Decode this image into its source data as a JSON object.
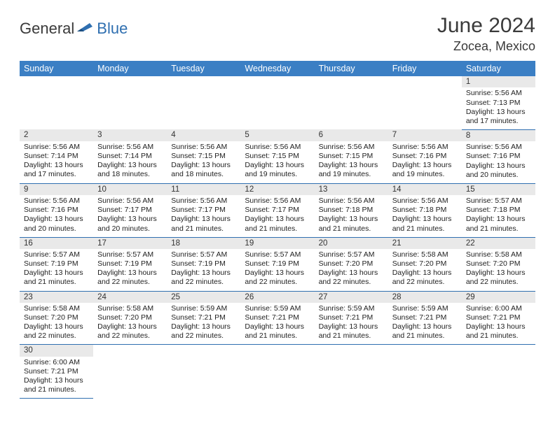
{
  "logo": {
    "part1": "General",
    "part2": "Blue"
  },
  "title": "June 2024",
  "location": "Zocea, Mexico",
  "colors": {
    "header_bg": "#3b7fc4",
    "header_text": "#ffffff",
    "rule": "#2f6fb0",
    "daynum_bg": "#e9e9e9",
    "logo_blue": "#2f6fb0",
    "text": "#222222"
  },
  "fonts": {
    "title_size_pt": 22,
    "location_size_pt": 13,
    "header_size_pt": 9,
    "cell_size_pt": 8
  },
  "weekdays": [
    "Sunday",
    "Monday",
    "Tuesday",
    "Wednesday",
    "Thursday",
    "Friday",
    "Saturday"
  ],
  "layout": {
    "first_weekday_index": 6,
    "days_in_month": 30,
    "columns": 7
  },
  "days": [
    {
      "n": 1,
      "sunrise": "5:56 AM",
      "sunset": "7:13 PM",
      "daylight": "13 hours and 17 minutes."
    },
    {
      "n": 2,
      "sunrise": "5:56 AM",
      "sunset": "7:14 PM",
      "daylight": "13 hours and 17 minutes."
    },
    {
      "n": 3,
      "sunrise": "5:56 AM",
      "sunset": "7:14 PM",
      "daylight": "13 hours and 18 minutes."
    },
    {
      "n": 4,
      "sunrise": "5:56 AM",
      "sunset": "7:15 PM",
      "daylight": "13 hours and 18 minutes."
    },
    {
      "n": 5,
      "sunrise": "5:56 AM",
      "sunset": "7:15 PM",
      "daylight": "13 hours and 19 minutes."
    },
    {
      "n": 6,
      "sunrise": "5:56 AM",
      "sunset": "7:15 PM",
      "daylight": "13 hours and 19 minutes."
    },
    {
      "n": 7,
      "sunrise": "5:56 AM",
      "sunset": "7:16 PM",
      "daylight": "13 hours and 19 minutes."
    },
    {
      "n": 8,
      "sunrise": "5:56 AM",
      "sunset": "7:16 PM",
      "daylight": "13 hours and 20 minutes."
    },
    {
      "n": 9,
      "sunrise": "5:56 AM",
      "sunset": "7:16 PM",
      "daylight": "13 hours and 20 minutes."
    },
    {
      "n": 10,
      "sunrise": "5:56 AM",
      "sunset": "7:17 PM",
      "daylight": "13 hours and 20 minutes."
    },
    {
      "n": 11,
      "sunrise": "5:56 AM",
      "sunset": "7:17 PM",
      "daylight": "13 hours and 21 minutes."
    },
    {
      "n": 12,
      "sunrise": "5:56 AM",
      "sunset": "7:17 PM",
      "daylight": "13 hours and 21 minutes."
    },
    {
      "n": 13,
      "sunrise": "5:56 AM",
      "sunset": "7:18 PM",
      "daylight": "13 hours and 21 minutes."
    },
    {
      "n": 14,
      "sunrise": "5:56 AM",
      "sunset": "7:18 PM",
      "daylight": "13 hours and 21 minutes."
    },
    {
      "n": 15,
      "sunrise": "5:57 AM",
      "sunset": "7:18 PM",
      "daylight": "13 hours and 21 minutes."
    },
    {
      "n": 16,
      "sunrise": "5:57 AM",
      "sunset": "7:19 PM",
      "daylight": "13 hours and 21 minutes."
    },
    {
      "n": 17,
      "sunrise": "5:57 AM",
      "sunset": "7:19 PM",
      "daylight": "13 hours and 22 minutes."
    },
    {
      "n": 18,
      "sunrise": "5:57 AM",
      "sunset": "7:19 PM",
      "daylight": "13 hours and 22 minutes."
    },
    {
      "n": 19,
      "sunrise": "5:57 AM",
      "sunset": "7:19 PM",
      "daylight": "13 hours and 22 minutes."
    },
    {
      "n": 20,
      "sunrise": "5:57 AM",
      "sunset": "7:20 PM",
      "daylight": "13 hours and 22 minutes."
    },
    {
      "n": 21,
      "sunrise": "5:58 AM",
      "sunset": "7:20 PM",
      "daylight": "13 hours and 22 minutes."
    },
    {
      "n": 22,
      "sunrise": "5:58 AM",
      "sunset": "7:20 PM",
      "daylight": "13 hours and 22 minutes."
    },
    {
      "n": 23,
      "sunrise": "5:58 AM",
      "sunset": "7:20 PM",
      "daylight": "13 hours and 22 minutes."
    },
    {
      "n": 24,
      "sunrise": "5:58 AM",
      "sunset": "7:20 PM",
      "daylight": "13 hours and 22 minutes."
    },
    {
      "n": 25,
      "sunrise": "5:59 AM",
      "sunset": "7:21 PM",
      "daylight": "13 hours and 22 minutes."
    },
    {
      "n": 26,
      "sunrise": "5:59 AM",
      "sunset": "7:21 PM",
      "daylight": "13 hours and 21 minutes."
    },
    {
      "n": 27,
      "sunrise": "5:59 AM",
      "sunset": "7:21 PM",
      "daylight": "13 hours and 21 minutes."
    },
    {
      "n": 28,
      "sunrise": "5:59 AM",
      "sunset": "7:21 PM",
      "daylight": "13 hours and 21 minutes."
    },
    {
      "n": 29,
      "sunrise": "6:00 AM",
      "sunset": "7:21 PM",
      "daylight": "13 hours and 21 minutes."
    },
    {
      "n": 30,
      "sunrise": "6:00 AM",
      "sunset": "7:21 PM",
      "daylight": "13 hours and 21 minutes."
    }
  ],
  "labels": {
    "sunrise": "Sunrise:",
    "sunset": "Sunset:",
    "daylight": "Daylight:"
  }
}
